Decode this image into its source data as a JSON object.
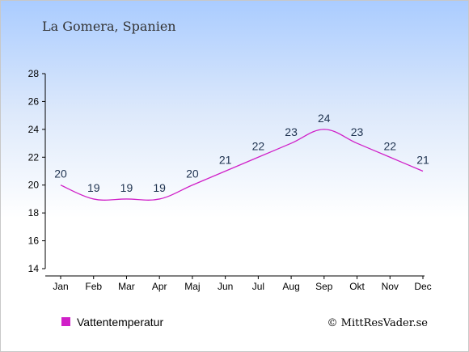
{
  "chart_data": {
    "type": "line",
    "title": "La Gomera, Spanien",
    "categories": [
      "Jan",
      "Feb",
      "Mar",
      "Apr",
      "Maj",
      "Jun",
      "Jul",
      "Aug",
      "Sep",
      "Okt",
      "Nov",
      "Dec"
    ],
    "series": [
      {
        "name": "Vattentemperatur",
        "values": [
          20,
          19,
          19,
          19,
          20,
          21,
          22,
          23,
          24,
          23,
          22,
          21
        ],
        "color": "#d020c8"
      }
    ],
    "ylim": [
      14,
      28
    ],
    "yticks": [
      "14",
      "16",
      "18",
      "20",
      "22",
      "24",
      "26",
      "28"
    ],
    "xlabel": "",
    "ylabel": "",
    "grid": false,
    "legend_position": "bottom-left"
  },
  "credit": "© MittResVader.se"
}
